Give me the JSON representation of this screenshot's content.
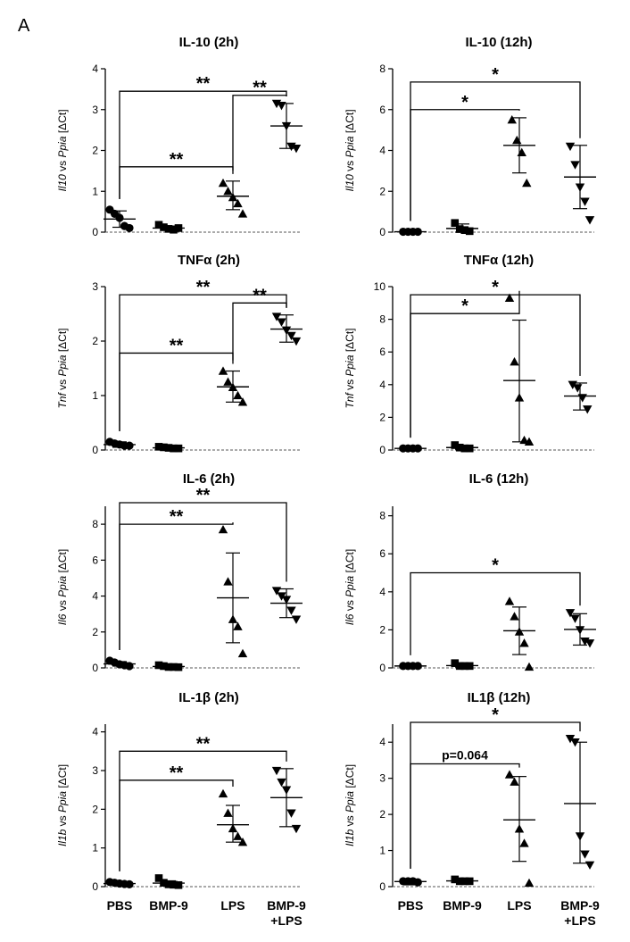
{
  "panel_label": "A",
  "group_labels": [
    "PBS",
    "BMP-9",
    "LPS",
    "BMP-9\n+LPS"
  ],
  "marker_shapes": [
    "circle",
    "square",
    "triangle-up",
    "triangle-down"
  ],
  "colors": {
    "ink": "#000000",
    "baseline": "#555555"
  },
  "chart_data": [
    {
      "type": "scatter",
      "title": "IL-10 (2h)",
      "ylabel_italic": "Il10",
      "ylabel_rest": " vs ",
      "ylabel_italic2": "Ppia",
      "ylabel_unit": " [ΔCt]",
      "ylim": [
        0,
        4
      ],
      "yticks": [
        0,
        1,
        2,
        3,
        4
      ],
      "grid": false,
      "categories": [
        "PBS",
        "BMP-9",
        "LPS",
        "BMP-9+LPS"
      ],
      "groups": [
        {
          "points": [
            0.55,
            0.45,
            0.35,
            0.15,
            0.1
          ],
          "mean": 0.32,
          "sd_low": 0.12,
          "sd_high": 0.52
        },
        {
          "points": [
            0.18,
            0.12,
            0.08,
            0.06,
            0.1
          ],
          "mean": 0.1,
          "sd_low": 0.06,
          "sd_high": 0.15
        },
        {
          "points": [
            1.2,
            1.0,
            0.85,
            0.7,
            0.45
          ],
          "mean": 0.88,
          "sd_low": 0.55,
          "sd_high": 1.25
        },
        {
          "points": [
            3.15,
            3.1,
            2.6,
            2.1,
            2.05
          ],
          "mean": 2.6,
          "sd_low": 2.05,
          "sd_high": 3.15
        }
      ],
      "significance": [
        {
          "from": 0,
          "to": 2,
          "label": "**",
          "y": 1.6
        },
        {
          "from": 0,
          "to": 3,
          "label": "**",
          "y": 3.45
        },
        {
          "from": 2,
          "to": 3,
          "label": "**",
          "y": 3.35
        }
      ]
    },
    {
      "type": "scatter",
      "title": "IL-10 (12h)",
      "ylabel_italic": "Il10",
      "ylabel_rest": " vs ",
      "ylabel_italic2": "Ppia",
      "ylabel_unit": " [ΔCt]",
      "ylim": [
        0,
        8
      ],
      "yticks": [
        0,
        2,
        4,
        6,
        8
      ],
      "grid": false,
      "categories": [
        "PBS",
        "BMP-9",
        "LPS",
        "BMP-9+LPS"
      ],
      "groups": [
        {
          "points": [
            0.02,
            0.02,
            0.02,
            0.02
          ],
          "mean": 0.02,
          "sd_low": 0.02,
          "sd_high": 0.02
        },
        {
          "points": [
            0.45,
            0.15,
            0.1,
            0.05
          ],
          "mean": 0.18,
          "sd_low": 0.0,
          "sd_high": 0.4
        },
        {
          "points": [
            5.5,
            4.5,
            3.9,
            2.4
          ],
          "mean": 4.25,
          "sd_low": 2.9,
          "sd_high": 5.6
        },
        {
          "points": [
            4.2,
            3.3,
            2.2,
            1.5,
            0.6
          ],
          "mean": 2.7,
          "sd_low": 1.15,
          "sd_high": 4.25
        }
      ],
      "significance": [
        {
          "from": 0,
          "to": 2,
          "label": "*",
          "y": 6.0
        },
        {
          "from": 0,
          "to": 3,
          "label": "*",
          "y": 7.35
        }
      ]
    },
    {
      "type": "scatter",
      "title": "TNFα (2h)",
      "ylabel_italic": "Tnf",
      "ylabel_rest": " vs ",
      "ylabel_italic2": "Ppia",
      "ylabel_unit": " [ΔCt]",
      "ylim": [
        0,
        3
      ],
      "yticks": [
        0,
        1,
        2,
        3
      ],
      "grid": false,
      "categories": [
        "PBS",
        "BMP-9",
        "LPS",
        "BMP-9+LPS"
      ],
      "groups": [
        {
          "points": [
            0.15,
            0.12,
            0.1,
            0.08,
            0.08
          ],
          "mean": 0.1,
          "sd_low": 0.05,
          "sd_high": 0.15
        },
        {
          "points": [
            0.06,
            0.05,
            0.04,
            0.03,
            0.03
          ],
          "mean": 0.04,
          "sd_low": 0.02,
          "sd_high": 0.06
        },
        {
          "points": [
            1.45,
            1.25,
            1.15,
            1.0,
            0.88
          ],
          "mean": 1.16,
          "sd_low": 0.88,
          "sd_high": 1.45
        },
        {
          "points": [
            2.45,
            2.35,
            2.2,
            2.1,
            2.0
          ],
          "mean": 2.22,
          "sd_low": 1.98,
          "sd_high": 2.48
        }
      ],
      "significance": [
        {
          "from": 0,
          "to": 2,
          "label": "**",
          "y": 1.78
        },
        {
          "from": 0,
          "to": 3,
          "label": "**",
          "y": 2.85
        },
        {
          "from": 2,
          "to": 3,
          "label": "**",
          "y": 2.7
        }
      ]
    },
    {
      "type": "scatter",
      "title": "TNFα (12h)",
      "ylabel_italic": "Tnf",
      "ylabel_rest": " vs ",
      "ylabel_italic2": "Ppia",
      "ylabel_unit": " [ΔCt]",
      "ylim": [
        0,
        10
      ],
      "yticks": [
        0,
        2,
        4,
        6,
        8,
        10
      ],
      "grid": false,
      "categories": [
        "PBS",
        "BMP-9",
        "LPS",
        "BMP-9+LPS"
      ],
      "groups": [
        {
          "points": [
            0.1,
            0.1,
            0.1,
            0.1
          ],
          "mean": 0.1,
          "sd_low": 0.1,
          "sd_high": 0.1
        },
        {
          "points": [
            0.3,
            0.15,
            0.1,
            0.1
          ],
          "mean": 0.15,
          "sd_low": 0.05,
          "sd_high": 0.25
        },
        {
          "points": [
            9.3,
            5.4,
            3.2,
            0.6,
            0.5
          ],
          "mean": 4.25,
          "sd_low": 0.5,
          "sd_high": 7.95
        },
        {
          "points": [
            4.0,
            3.8,
            3.2,
            2.5
          ],
          "mean": 3.3,
          "sd_low": 2.45,
          "sd_high": 4.1
        }
      ],
      "significance": [
        {
          "from": 0,
          "to": 2,
          "label": "*",
          "y": 8.35
        },
        {
          "from": 0,
          "to": 3,
          "label": "*",
          "y": 9.5
        }
      ]
    },
    {
      "type": "scatter",
      "title": "IL-6 (2h)",
      "ylabel_italic": "Il6",
      "ylabel_rest": " vs ",
      "ylabel_italic2": "Ppia",
      "ylabel_unit": " [ΔCt]",
      "ylim": [
        0,
        9
      ],
      "yticks": [
        0,
        2,
        4,
        6,
        8
      ],
      "grid": false,
      "categories": [
        "PBS",
        "BMP-9",
        "LPS",
        "BMP-9+LPS"
      ],
      "groups": [
        {
          "points": [
            0.4,
            0.3,
            0.2,
            0.15,
            0.1
          ],
          "mean": 0.22,
          "sd_low": 0.1,
          "sd_high": 0.35
        },
        {
          "points": [
            0.15,
            0.1,
            0.05,
            0.05,
            0.04
          ],
          "mean": 0.08,
          "sd_low": 0.03,
          "sd_high": 0.12
        },
        {
          "points": [
            7.7,
            4.8,
            2.7,
            2.3,
            0.8
          ],
          "mean": 3.9,
          "sd_low": 1.4,
          "sd_high": 6.4
        },
        {
          "points": [
            4.3,
            4.0,
            3.8,
            3.2,
            2.7
          ],
          "mean": 3.6,
          "sd_low": 2.8,
          "sd_high": 4.4
        }
      ],
      "significance": [
        {
          "from": 0,
          "to": 2,
          "label": "**",
          "y": 8.0
        },
        {
          "from": 0,
          "to": 3,
          "label": "**",
          "y": 9.2
        }
      ]
    },
    {
      "type": "scatter",
      "title": "IL-6 (12h)",
      "ylabel_italic": "Il6",
      "ylabel_rest": " vs ",
      "ylabel_italic2": "Ppia",
      "ylabel_unit": " [ΔCt]",
      "ylim": [
        0,
        8.5
      ],
      "yticks": [
        0,
        2,
        4,
        6,
        8
      ],
      "grid": false,
      "categories": [
        "PBS",
        "BMP-9",
        "LPS",
        "BMP-9+LPS"
      ],
      "groups": [
        {
          "points": [
            0.1,
            0.1,
            0.1,
            0.1
          ],
          "mean": 0.1,
          "sd_low": 0.1,
          "sd_high": 0.1
        },
        {
          "points": [
            0.25,
            0.1,
            0.1,
            0.1
          ],
          "mean": 0.12,
          "sd_low": 0.05,
          "sd_high": 0.2
        },
        {
          "points": [
            3.5,
            2.7,
            1.9,
            1.3,
            0.05
          ],
          "mean": 1.95,
          "sd_low": 0.7,
          "sd_high": 3.2
        },
        {
          "points": [
            2.9,
            2.6,
            2.0,
            1.4,
            1.3
          ],
          "mean": 2.02,
          "sd_low": 1.2,
          "sd_high": 2.85
        }
      ],
      "significance": [
        {
          "from": 0,
          "to": 3,
          "label": "*",
          "y": 5.0
        }
      ]
    },
    {
      "type": "scatter",
      "title": "IL-1β (2h)",
      "ylabel_italic": "Il1b",
      "ylabel_rest": " vs ",
      "ylabel_italic2": "Ppia",
      "ylabel_unit": " [ΔCt]",
      "ylim": [
        0,
        4.2
      ],
      "yticks": [
        0,
        1,
        2,
        3,
        4
      ],
      "grid": false,
      "categories": [
        "PBS",
        "BMP-9",
        "LPS",
        "BMP-9+LPS"
      ],
      "groups": [
        {
          "points": [
            0.12,
            0.1,
            0.08,
            0.07,
            0.06
          ],
          "mean": 0.08,
          "sd_low": 0.05,
          "sd_high": 0.12
        },
        {
          "points": [
            0.22,
            0.1,
            0.06,
            0.05,
            0.04
          ],
          "mean": 0.09,
          "sd_low": 0.03,
          "sd_high": 0.15
        },
        {
          "points": [
            2.4,
            1.9,
            1.5,
            1.3,
            1.15
          ],
          "mean": 1.6,
          "sd_low": 1.15,
          "sd_high": 2.1
        },
        {
          "points": [
            3.0,
            2.7,
            2.5,
            1.9,
            1.5
          ],
          "mean": 2.3,
          "sd_low": 1.55,
          "sd_high": 3.05
        }
      ],
      "significance": [
        {
          "from": 0,
          "to": 2,
          "label": "**",
          "y": 2.75
        },
        {
          "from": 0,
          "to": 3,
          "label": "**",
          "y": 3.5
        }
      ]
    },
    {
      "type": "scatter",
      "title": "IL1β (12h)",
      "ylabel_italic": "Il1b",
      "ylabel_rest": " vs ",
      "ylabel_italic2": "Ppia",
      "ylabel_unit": " [ΔCt]",
      "ylim": [
        0,
        4.5
      ],
      "yticks": [
        0,
        1,
        2,
        3,
        4
      ],
      "grid": false,
      "categories": [
        "PBS",
        "BMP-9",
        "LPS",
        "BMP-9+LPS"
      ],
      "groups": [
        {
          "points": [
            0.15,
            0.15,
            0.15,
            0.12
          ],
          "mean": 0.14,
          "sd_low": 0.05,
          "sd_high": 0.2
        },
        {
          "points": [
            0.2,
            0.15,
            0.15,
            0.15
          ],
          "mean": 0.16,
          "sd_low": 0.12,
          "sd_high": 0.2
        },
        {
          "points": [
            3.1,
            2.9,
            1.6,
            1.2,
            0.1
          ],
          "mean": 1.85,
          "sd_low": 0.7,
          "sd_high": 3.05
        },
        {
          "points": [
            4.1,
            4.0,
            1.4,
            0.9,
            0.6
          ],
          "mean": 2.3,
          "sd_low": 0.65,
          "sd_high": 4.0
        }
      ],
      "significance": [
        {
          "from": 0,
          "to": 2,
          "label": "p=0.064",
          "y": 3.4
        },
        {
          "from": 0,
          "to": 3,
          "label": "*",
          "y": 4.55
        }
      ]
    }
  ]
}
